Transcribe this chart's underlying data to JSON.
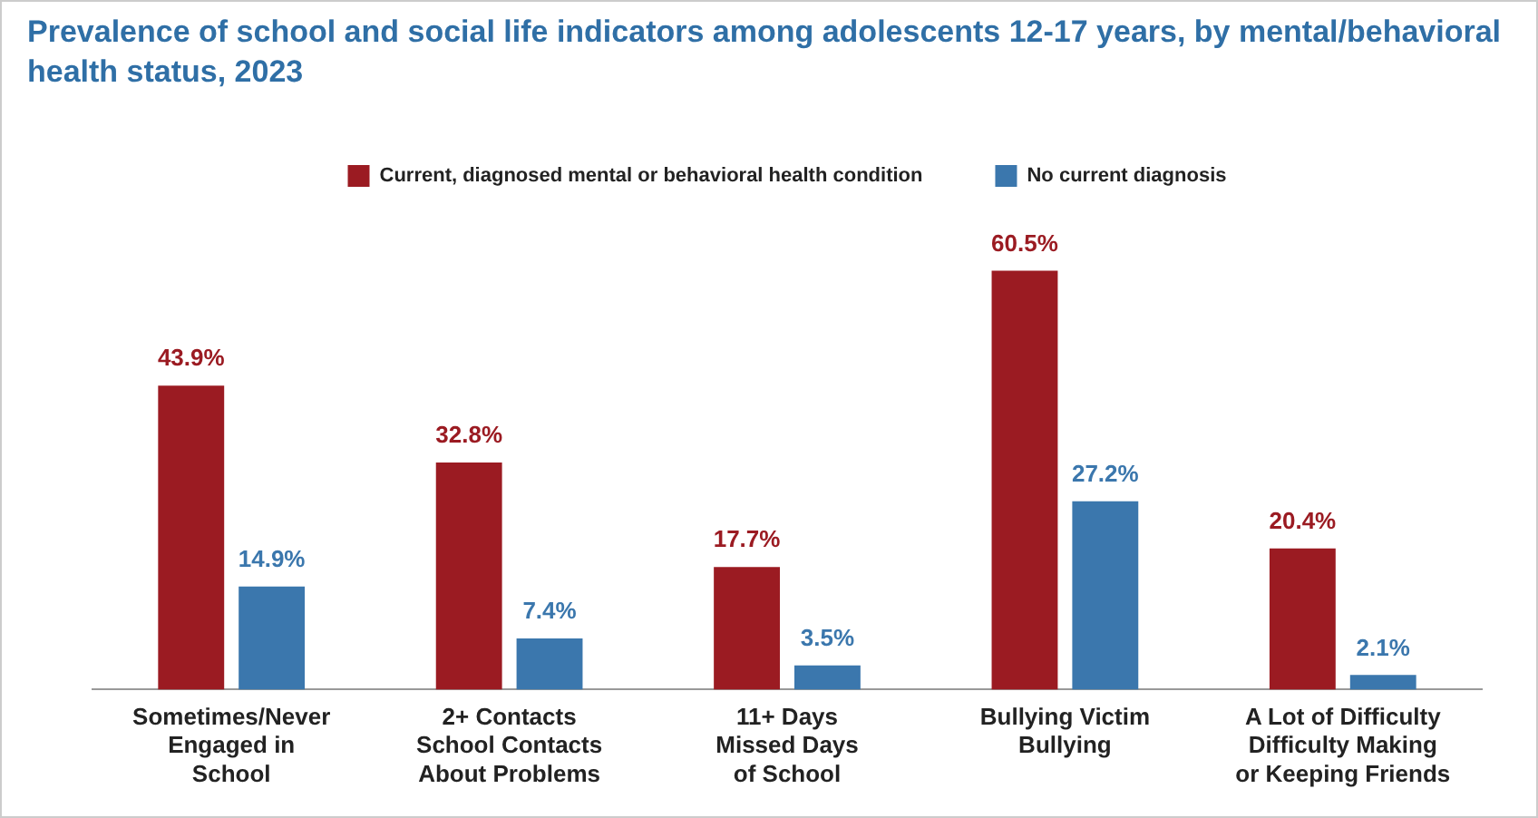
{
  "chart_data": {
    "type": "bar",
    "title": "Prevalence of school and social life indicators among adolescents 12-17 years, by mental/behavioral health status, 2023",
    "categories": [
      "Sometimes/Never\nEngaged in\nSchool",
      "2+ Contacts\nSchool Contacts\nAbout Problems",
      "11+ Days\nMissed Days\nof School",
      "Bullying Victim\nBullying",
      "A Lot of Difficulty\nDifficulty Making\nor Keeping Friends"
    ],
    "series": [
      {
        "name": "Current, diagnosed mental or behavioral health condition",
        "color": "#9b1b22",
        "values": [
          43.9,
          32.8,
          17.7,
          60.5,
          20.4
        ],
        "value_labels": [
          "43.9%",
          "32.8%",
          "17.7%",
          "60.5%",
          "20.4%"
        ]
      },
      {
        "name": "No current diagnosis",
        "color": "#3b77ad",
        "values": [
          14.9,
          7.4,
          3.5,
          27.2,
          2.1
        ],
        "value_labels": [
          "14.9%",
          "7.4%",
          "3.5%",
          "27.2%",
          "2.1%"
        ]
      }
    ],
    "legend": "top",
    "grid": false,
    "tick_labels": "x"
  }
}
